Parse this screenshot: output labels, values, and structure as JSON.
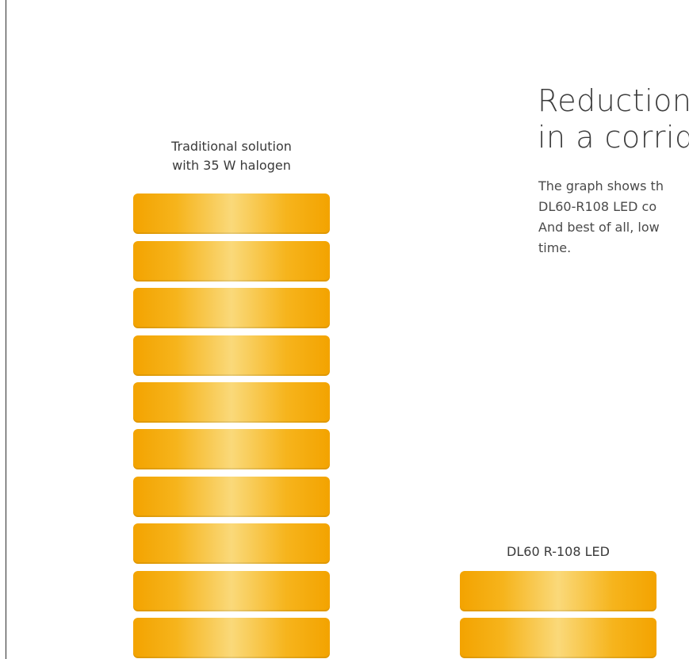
{
  "heading": {
    "line1": "Reduction o",
    "line2": "in a corrido"
  },
  "description": {
    "line1": "The graph shows th",
    "line2": "DL60-R108 LED co",
    "line3": "And best of all, low",
    "line4": "time."
  },
  "chart_data": {
    "type": "bar",
    "unit_marks": "stacked blocks",
    "series": [
      {
        "name": "Traditional solution with 35 W halogen",
        "label_lines": [
          "Traditional solution",
          "with 35 W halogen"
        ],
        "blocks": 10
      },
      {
        "name": "DL60 R-108 LED",
        "label_lines": [
          "DL60 R-108 LED"
        ],
        "blocks": 2
      }
    ],
    "colors": {
      "bar_edge": "#f3a300",
      "bar_center": "#fad97a"
    }
  }
}
